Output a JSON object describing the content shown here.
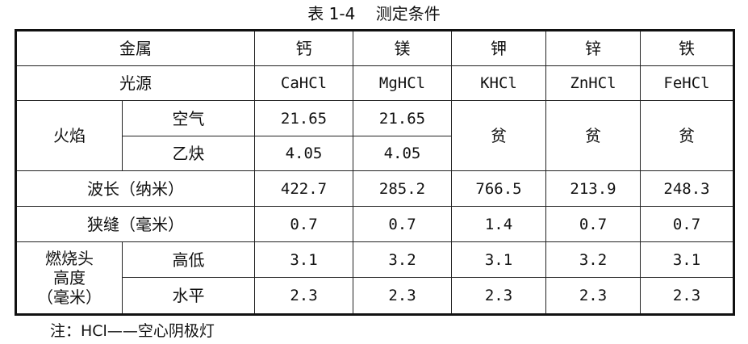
{
  "caption": "表 1-4    测定条件",
  "table": {
    "header": {
      "label": "金属",
      "metals": [
        "钙",
        "镁",
        "钾",
        "锌",
        "铁"
      ]
    },
    "light_source": {
      "label": "光源",
      "values": [
        "CaHCl",
        "MgHCl",
        "KHCl",
        "ZnHCl",
        "FeHCl"
      ]
    },
    "flame": {
      "label": "火焰",
      "air": {
        "label": "空气",
        "values": [
          "21.65",
          "21.65"
        ]
      },
      "acetylene": {
        "label": "乙炔",
        "values": [
          "4.05",
          "4.05"
        ]
      },
      "lean": [
        "贫",
        "贫",
        "贫"
      ]
    },
    "wavelength": {
      "label": "波长（纳米）",
      "values": [
        "422.7",
        "285.2",
        "766.5",
        "213.9",
        "248.3"
      ]
    },
    "slit": {
      "label": "狭缝（毫米）",
      "values": [
        "0.7",
        "0.7",
        "1.4",
        "0.7",
        "0.7"
      ]
    },
    "burner": {
      "label_lines": [
        "燃烧头",
        "高度",
        "（毫米）"
      ],
      "high_low": {
        "label": "高低",
        "values": [
          "3.1",
          "3.2",
          "3.1",
          "3.2",
          "3.1"
        ]
      },
      "level": {
        "label": "水平",
        "values": [
          "2.3",
          "2.3",
          "2.3",
          "2.3",
          "2.3"
        ]
      }
    }
  },
  "note": "注：HCl——空心阴极灯"
}
